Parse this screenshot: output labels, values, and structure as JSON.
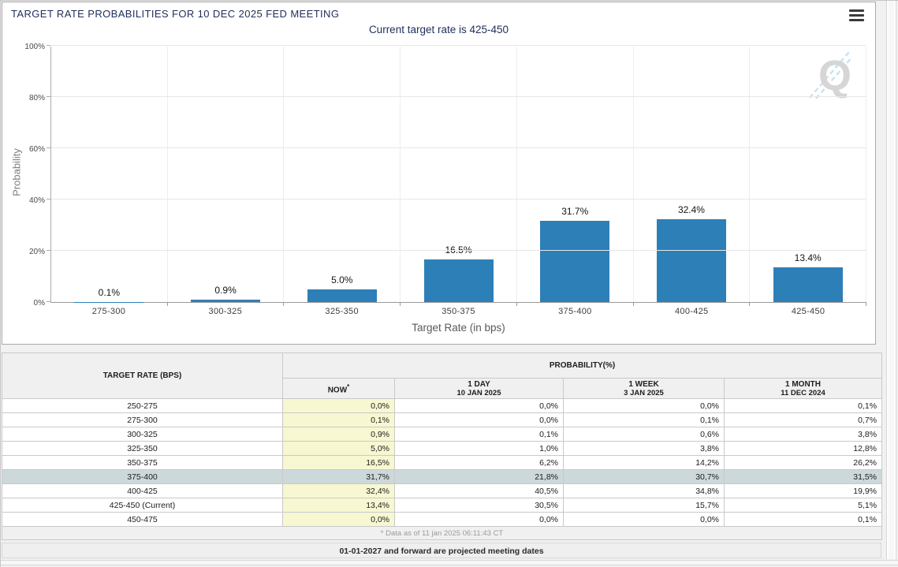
{
  "chart_data": {
    "type": "bar",
    "title": "TARGET RATE PROBABILITIES FOR 10 DEC 2025 FED MEETING",
    "subtitle": "Current target rate is 425-450",
    "xlabel": "Target Rate (in bps)",
    "ylabel": "Probability",
    "categories": [
      "275-300",
      "300-325",
      "325-350",
      "350-375",
      "375-400",
      "400-425",
      "425-450"
    ],
    "values": [
      0.1,
      0.9,
      5.0,
      16.5,
      31.7,
      32.4,
      13.4
    ],
    "bar_labels": [
      "0.1%",
      "0.9%",
      "5.0%",
      "16.5%",
      "31.7%",
      "32.4%",
      "13.4%"
    ],
    "ylim": [
      0,
      100
    ],
    "ytick_labels": [
      "0%",
      "20%",
      "40%",
      "60%",
      "80%",
      "100%"
    ],
    "grid": "horizontal-and-vertical",
    "legend": "none",
    "watermark_letter": "Q"
  },
  "table": {
    "col_rate_header": "TARGET RATE (BPS)",
    "prob_group_header": "PROBABILITY(%)",
    "columns": [
      {
        "label": "NOW",
        "sup": "*",
        "date": ""
      },
      {
        "label": "1 DAY",
        "date": "10 JAN 2025"
      },
      {
        "label": "1 WEEK",
        "date": "3 JAN 2025"
      },
      {
        "label": "1 MONTH",
        "date": "11 DEC 2024"
      }
    ],
    "rows": [
      {
        "rate": "250-275",
        "values": [
          "0,0%",
          "0,0%",
          "0,0%",
          "0,1%"
        ],
        "highlight": false
      },
      {
        "rate": "275-300",
        "values": [
          "0,1%",
          "0,0%",
          "0,1%",
          "0,7%"
        ],
        "highlight": false
      },
      {
        "rate": "300-325",
        "values": [
          "0,9%",
          "0,1%",
          "0,6%",
          "3,8%"
        ],
        "highlight": false
      },
      {
        "rate": "325-350",
        "values": [
          "5,0%",
          "1,0%",
          "3,8%",
          "12,8%"
        ],
        "highlight": false
      },
      {
        "rate": "350-375",
        "values": [
          "16,5%",
          "6,2%",
          "14,2%",
          "26,2%"
        ],
        "highlight": false
      },
      {
        "rate": "375-400",
        "values": [
          "31,7%",
          "21,8%",
          "30,7%",
          "31,5%"
        ],
        "highlight": true
      },
      {
        "rate": "400-425",
        "values": [
          "32,4%",
          "40,5%",
          "34,8%",
          "19,9%"
        ],
        "highlight": false
      },
      {
        "rate": "425-450 (Current)",
        "values": [
          "13,4%",
          "30,5%",
          "15,7%",
          "5,1%"
        ],
        "highlight": false
      },
      {
        "rate": "450-475",
        "values": [
          "0,0%",
          "0,0%",
          "0,0%",
          "0,1%"
        ],
        "highlight": false
      }
    ],
    "footnote": "* Data as of 11 jan 2025 06:11:43 CT",
    "note": "01-01-2027 and forward are projected meeting dates"
  },
  "colors": {
    "bar": "#2d7fb8",
    "accent_navy": "#1f2e5a",
    "now_column_bg": "#f7f7d2",
    "highlight_row_bg": "#ccd8da"
  }
}
